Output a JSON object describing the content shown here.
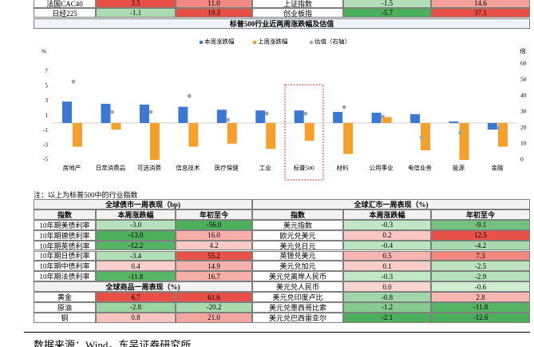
{
  "top_rows": [
    [
      "法国CAC40",
      "3.5",
      "11.0",
      "上证指数",
      "-1.5",
      "14.6"
    ],
    [
      "日经225",
      "-1.1",
      "19.3",
      "创业板指",
      "-5.7",
      "37.1"
    ]
  ],
  "chart_data": {
    "type": "bar",
    "title": "标普500行业近两周涨跌幅及估值",
    "y_label": "%",
    "y2_label": "倍",
    "categories": [
      "房地产",
      "日常消费品",
      "可选消费",
      "信息技术",
      "医疗保健",
      "工业",
      "标普500",
      "材料",
      "公用事业",
      "电信业务",
      "能源",
      "金融"
    ],
    "series": [
      {
        "name": "本周涨跌幅",
        "color": "#3a78d4",
        "values": [
          2.9,
          2.6,
          2.5,
          2.2,
          1.8,
          1.7,
          1.7,
          1.5,
          1.4,
          1.2,
          0.2,
          -0.9
        ]
      },
      {
        "name": "上周涨跌幅",
        "color": "#f5a02a",
        "values": [
          -3.2,
          -0.9,
          -5.0,
          -3.2,
          -2.8,
          -3.5,
          -2.4,
          -4.2,
          0.8,
          -3.7,
          -5.0,
          -3.2
        ]
      },
      {
        "name": "估值（右轴）",
        "color": "#a5a5a5",
        "type": "scatter",
        "axis": "y2",
        "values": [
          49,
          30,
          30,
          40,
          25,
          29,
          29,
          33,
          27,
          14,
          17,
          20
        ]
      }
    ],
    "ylim": [
      -5,
      8
    ],
    "yticks": [
      -5,
      -3,
      -1,
      1,
      3,
      5,
      7
    ],
    "y2lim": [
      0,
      60
    ],
    "y2ticks": [
      0,
      10,
      20,
      30,
      40,
      50,
      60
    ]
  },
  "note": "注：以上为标普500中的行业指数",
  "bond": {
    "title": "全球债市一周表现（bp)",
    "headers": [
      "指数",
      "本周涨跌幅",
      "年初至今"
    ],
    "rows": [
      [
        "10年期美债利率",
        "-3.0",
        "-56.0"
      ],
      [
        "10年期德债利率",
        "-13.0",
        "16.0"
      ],
      [
        "10年期英债利率",
        "-12.2",
        "4.2"
      ],
      [
        "10年期日债利率",
        "-3.4",
        "55.2"
      ],
      [
        "10年期中债利率",
        "0.4",
        "14.9"
      ],
      [
        "10年期法债利率",
        "-11.8",
        "16.7"
      ]
    ]
  },
  "commodity": {
    "title": "全球商品一周表现（%)",
    "rows": [
      [
        "黄金",
        "6.7",
        "61.6"
      ],
      [
        "原油",
        "-2.8",
        "-20.2"
      ],
      [
        "铜",
        "0.8",
        "21.0"
      ]
    ]
  },
  "fx": {
    "title": "全球汇市一周表现（%)",
    "headers": [
      "指数",
      "本周涨跌幅",
      "年初至今"
    ],
    "rows": [
      [
        "美元指数",
        "-0.3",
        "-9.1"
      ],
      [
        "欧元兑美元",
        "0.2",
        "12.5"
      ],
      [
        "美元兑日元",
        "-0.4",
        "-4.2"
      ],
      [
        "英镑兑美元",
        "0.5",
        "7.3"
      ],
      [
        "美元兑加元",
        "0.1",
        "-2.5"
      ],
      [
        "美元兑离岸人民币",
        "-0.3",
        "-2.9"
      ],
      [
        "美元兑人民币",
        "0.0",
        "-0.6"
      ],
      [
        "美元兑印度卢比",
        "-0.8",
        "2.8"
      ],
      [
        "美元兑墨西哥比索",
        "-1.2",
        "-11.8"
      ],
      [
        "美元兑巴西雷亚尔",
        "-2.1",
        "-12.6"
      ]
    ]
  },
  "source": "数据来源：Wind，东吴证券研究所"
}
